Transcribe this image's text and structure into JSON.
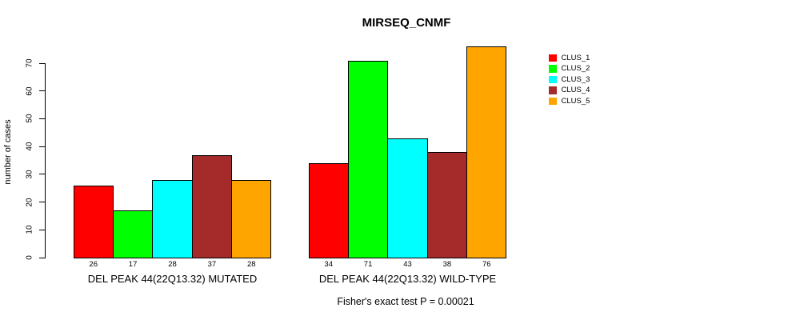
{
  "chart_data": {
    "type": "bar",
    "title": "MIRSEQ_CNMF",
    "ylabel": "number of cases",
    "caption": "Fisher's exact test P = 0.00021",
    "ylim": [
      0,
      70
    ],
    "yticks": [
      0,
      10,
      20,
      30,
      40,
      50,
      60,
      70
    ],
    "grid": false,
    "legend_position": "right",
    "categories": [
      "DEL PEAK 44(22Q13.32) MUTATED",
      "DEL PEAK 44(22Q13.32) WILD-TYPE"
    ],
    "series": [
      {
        "name": "CLUS_1",
        "color": "#FF0000",
        "values": [
          26,
          34
        ]
      },
      {
        "name": "CLUS_2",
        "color": "#00FF00",
        "values": [
          17,
          71
        ]
      },
      {
        "name": "CLUS_3",
        "color": "#00FFFF",
        "values": [
          28,
          43
        ]
      },
      {
        "name": "CLUS_4",
        "color": "#A52A2A",
        "values": [
          37,
          38
        ]
      },
      {
        "name": "CLUS_5",
        "color": "#FFA500",
        "values": [
          28,
          76
        ]
      }
    ],
    "bar_value_labels_shown": true,
    "colors": {
      "background": "#ffffff",
      "axis": "#000000",
      "text": "#000000"
    }
  }
}
